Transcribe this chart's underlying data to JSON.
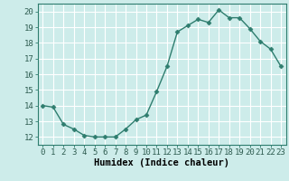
{
  "x": [
    0,
    1,
    2,
    3,
    4,
    5,
    6,
    7,
    8,
    9,
    10,
    11,
    12,
    13,
    14,
    15,
    16,
    17,
    18,
    19,
    20,
    21,
    22,
    23
  ],
  "y": [
    14.0,
    13.9,
    12.8,
    12.5,
    12.1,
    12.0,
    12.0,
    12.0,
    12.5,
    13.1,
    13.4,
    14.9,
    16.5,
    18.7,
    19.1,
    19.5,
    19.3,
    20.1,
    19.6,
    19.6,
    18.9,
    18.1,
    17.6,
    16.5
  ],
  "xlabel": "Humidex (Indice chaleur)",
  "ylim": [
    11.5,
    20.5
  ],
  "xlim": [
    -0.5,
    23.5
  ],
  "yticks": [
    12,
    13,
    14,
    15,
    16,
    17,
    18,
    19,
    20
  ],
  "xticks": [
    0,
    1,
    2,
    3,
    4,
    5,
    6,
    7,
    8,
    9,
    10,
    11,
    12,
    13,
    14,
    15,
    16,
    17,
    18,
    19,
    20,
    21,
    22,
    23
  ],
  "line_color": "#2e7d6e",
  "marker": "D",
  "marker_size": 2.5,
  "bg_color": "#cdecea",
  "grid_color": "#ffffff",
  "tick_label_fontsize": 6.5,
  "xlabel_fontsize": 7.5,
  "title": ""
}
